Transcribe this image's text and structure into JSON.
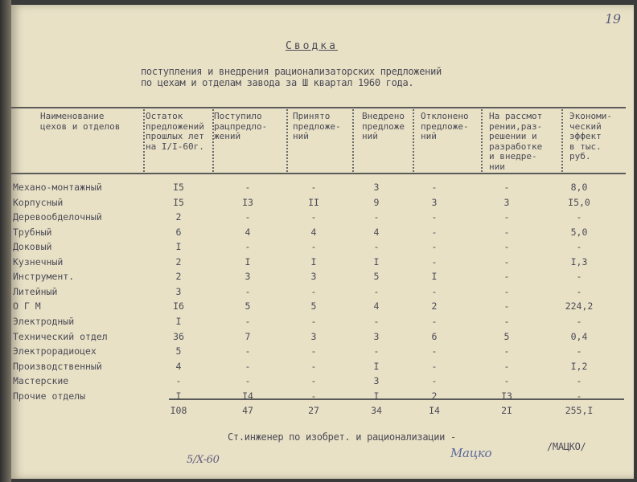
{
  "page_number": "19",
  "title": "Сводка",
  "subtitle": [
    "поступления и внедрения рационализаторских предложений",
    "по цехам и отделам завода за Ш квартал 1960 года."
  ],
  "columns": [
    "Наименование\nцехов и отделов",
    "Остаток\nпредложений\nпрошлых лет\nна I/I-60г.",
    "Поступило\nрацпредло-\nжений",
    "Принято\nпредложе-\nний",
    "Внедрено\nпредложе\nний",
    "Отклонено\nпредложе-\nний",
    "На рассмот\nрении,раз-\nрешении и\nразработке\nи внедре-\nнии",
    "Экономи-\nческий\nэффект\nв тыс.\nруб."
  ],
  "rows": [
    [
      "Механо-монтажный",
      "I5",
      "-",
      "-",
      "3",
      "-",
      "-",
      "8,0"
    ],
    [
      "Корпусный",
      "I5",
      "I3",
      "II",
      "9",
      "3",
      "3",
      "I5,0"
    ],
    [
      "Деревообделочный",
      "2",
      "-",
      "-",
      "-",
      "-",
      "-",
      "-"
    ],
    [
      "Трубный",
      "6",
      "4",
      "4",
      "4",
      "-",
      "-",
      "5,0"
    ],
    [
      "Доковый",
      "I",
      "-",
      "-",
      "-",
      "-",
      "-",
      "-"
    ],
    [
      "Кузнечный",
      "2",
      "I",
      "I",
      "I",
      "-",
      "-",
      "I,3"
    ],
    [
      "Инструмент.",
      "2",
      "3",
      "3",
      "5",
      "I",
      "-",
      "-"
    ],
    [
      "Литейный",
      "3",
      "-",
      "-",
      "-",
      "-",
      "-",
      "-"
    ],
    [
      "О Г М",
      "I6",
      "5",
      "5",
      "4",
      "2",
      "-",
      "224,2"
    ],
    [
      "Электродный",
      "I",
      "-",
      "-",
      "-",
      "-",
      "-",
      "-"
    ],
    [
      "Технический отдел",
      "36",
      "7",
      "3",
      "3",
      "6",
      "5",
      "0,4"
    ],
    [
      "Электрорадиоцех",
      "5",
      "-",
      "-",
      "-",
      "-",
      "-",
      "-"
    ],
    [
      "Производственный",
      "4",
      "-",
      "-",
      "I",
      "-",
      "-",
      "I,2"
    ],
    [
      "Мастерские",
      "-",
      "-",
      "-",
      "3",
      "-",
      "-",
      "-"
    ],
    [
      "Прочие отделы",
      "I",
      "I4",
      "-",
      "I",
      "2",
      "I3",
      "-"
    ]
  ],
  "totals": [
    "",
    "I08",
    "47",
    "27",
    "34",
    "I4",
    "2I",
    "255,I"
  ],
  "footer": "Ст.инженер по изобрет. и рационализации -",
  "signature": "Мацко",
  "signer": "/МАЦКО/",
  "date_note": "5/X-60"
}
